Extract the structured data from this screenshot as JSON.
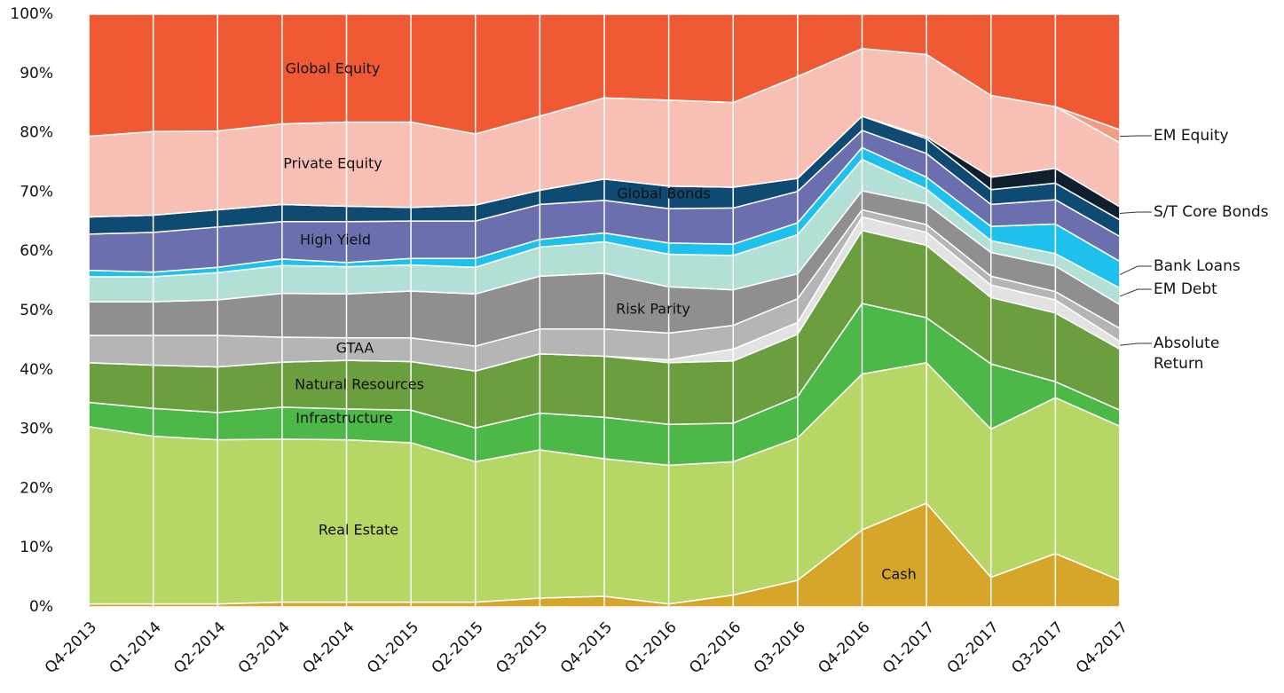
{
  "chart_data": {
    "type": "stacked_area",
    "categories": [
      "Q4-2013",
      "Q1-2014",
      "Q2-2014",
      "Q3-2014",
      "Q4-2014",
      "Q1-2015",
      "Q2-2015",
      "Q3-2015",
      "Q4-2015",
      "Q1-2016",
      "Q2-2016",
      "Q3-2016",
      "Q4-2016",
      "Q1-2017",
      "Q2-2017",
      "Q3-2017",
      "Q4-2017"
    ],
    "ylim": [
      0,
      100
    ],
    "yticks": [
      {
        "value": 0,
        "label": "0%"
      },
      {
        "value": 10,
        "label": "10%"
      },
      {
        "value": 20,
        "label": "20%"
      },
      {
        "value": 30,
        "label": "30%"
      },
      {
        "value": 40,
        "label": "40%"
      },
      {
        "value": 50,
        "label": "50%"
      },
      {
        "value": 60,
        "label": "60%"
      },
      {
        "value": 70,
        "label": "70%"
      },
      {
        "value": 80,
        "label": "80%"
      },
      {
        "value": 90,
        "label": "90%"
      },
      {
        "value": 100,
        "label": "100%"
      }
    ],
    "grid": true,
    "series": [
      {
        "name": "Cash",
        "color": "#d6a62a",
        "values": [
          0.5,
          0.5,
          0.5,
          0.8,
          0.8,
          0.8,
          0.8,
          1.5,
          1.8,
          0.5,
          2.0,
          4.5,
          13.0,
          17.5,
          5.0,
          9.0,
          4.5
        ]
      },
      {
        "name": "Real Estate",
        "color": "#b6d665",
        "values": [
          29.9,
          28.3,
          27.7,
          27.5,
          27.4,
          26.9,
          23.7,
          25.0,
          23.2,
          23.4,
          22.5,
          24.0,
          26.3,
          23.7,
          25.0,
          26.3,
          26.0
        ]
      },
      {
        "name": "Infrastructure",
        "color": "#4cb848",
        "values": [
          4.1,
          4.7,
          4.6,
          5.4,
          5.2,
          5.5,
          5.7,
          6.2,
          7.0,
          6.9,
          6.5,
          7.0,
          11.9,
          7.6,
          11.0,
          2.7,
          2.7
        ]
      },
      {
        "name": "Natural Resources",
        "color": "#6a9e3e",
        "values": [
          6.7,
          7.3,
          7.7,
          7.6,
          8.2,
          8.2,
          9.6,
          10.0,
          10.3,
          10.4,
          10.5,
          10.5,
          12.3,
          12.2,
          11.2,
          11.6,
          10.3
        ]
      },
      {
        "name": "Absolute Return",
        "color": "#e2e2e2",
        "values": [
          0,
          0,
          0,
          0,
          0,
          0,
          0,
          0,
          0,
          0.5,
          2.0,
          2.0,
          2.3,
          2.2,
          2.1,
          2.2,
          1.3
        ]
      },
      {
        "name": "GTAA",
        "color": "#b5b5b5",
        "values": [
          4.6,
          5.0,
          5.3,
          4.2,
          3.8,
          4.0,
          4.2,
          4.2,
          4.6,
          4.5,
          4.0,
          4.0,
          1.2,
          1.3,
          1.5,
          1.4,
          2.2
        ]
      },
      {
        "name": "Risk Parity",
        "color": "#8f8f8f",
        "values": [
          5.7,
          5.7,
          6.0,
          7.4,
          7.4,
          7.9,
          8.8,
          8.9,
          9.4,
          7.8,
          6.0,
          4.2,
          3.2,
          3.5,
          4.0,
          4.3,
          4.0
        ]
      },
      {
        "name": "EM Debt",
        "color": "#b2e0d6",
        "values": [
          4.2,
          4.2,
          4.6,
          4.7,
          4.6,
          4.4,
          4.5,
          4.9,
          5.3,
          5.5,
          5.8,
          6.6,
          5.3,
          2.5,
          2.0,
          2.1,
          2.8
        ]
      },
      {
        "name": "Bank Loans",
        "color": "#1ec1ee",
        "values": [
          1.1,
          0.8,
          0.9,
          1.1,
          0.7,
          1.1,
          1.5,
          1.3,
          1.5,
          1.9,
          1.9,
          2.0,
          2.0,
          2.0,
          2.4,
          5.0,
          4.5
        ]
      },
      {
        "name": "High Yield",
        "color": "#6c6fae",
        "values": [
          6.1,
          6.7,
          6.8,
          6.3,
          6.9,
          6.3,
          6.3,
          5.9,
          5.5,
          5.8,
          6.1,
          5.3,
          2.9,
          4.0,
          3.7,
          4.1,
          4.2
        ]
      },
      {
        "name": "Global Bonds",
        "color": "#0e4a72",
        "values": [
          2.9,
          2.9,
          2.9,
          2.9,
          2.6,
          2.3,
          2.7,
          2.4,
          3.6,
          3.8,
          3.5,
          2.2,
          2.4,
          2.5,
          2.5,
          2.8,
          2.8
        ]
      },
      {
        "name": "S/T Core Bonds",
        "color": "#0f1f30",
        "values": [
          0,
          0,
          0,
          0,
          0,
          0,
          0,
          0,
          0,
          0,
          0,
          0,
          0,
          0.3,
          2.1,
          2.5,
          2.2
        ]
      },
      {
        "name": "Private Equity",
        "color": "#f8c0b4",
        "values": [
          13.6,
          14.1,
          13.3,
          13.6,
          14.2,
          14.4,
          12.0,
          12.5,
          13.7,
          14.5,
          14.3,
          17.2,
          11.4,
          13.9,
          13.8,
          10.4,
          10.8
        ]
      },
      {
        "name": "EM Equity",
        "color": "#f49c83",
        "values": [
          0,
          0,
          0,
          0,
          0,
          0,
          0,
          0,
          0,
          0,
          0,
          0,
          0,
          0,
          0,
          0,
          2.2
        ]
      },
      {
        "name": "Global Equity",
        "color": "#ef5a35",
        "values": [
          20.6,
          19.8,
          19.7,
          18.5,
          18.2,
          18.2,
          20.2,
          17.2,
          14.1,
          14.5,
          14.9,
          10.5,
          5.8,
          6.8,
          13.7,
          15.6,
          19.5
        ]
      }
    ]
  }
}
